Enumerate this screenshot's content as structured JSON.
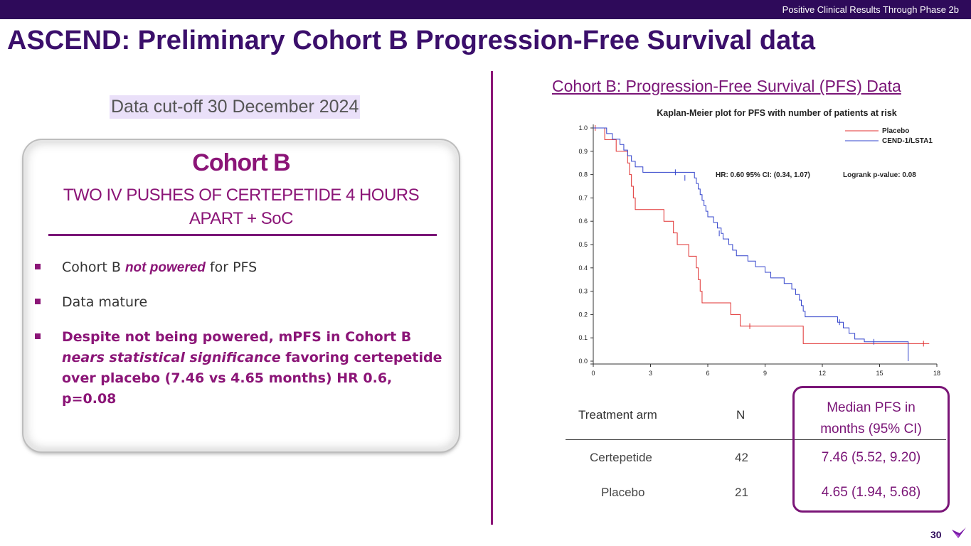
{
  "header": {
    "tagline": "Positive Clinical Results Through Phase 2b"
  },
  "slide": {
    "title": "ASCEND: Preliminary Cohort B Progression-Free Survival data",
    "cutoff": "Data cut-off 30 December 2024",
    "page_number": "30"
  },
  "card": {
    "title": "Cohort B",
    "subtitle_line1": "TWO IV PUSHES OF CERTEPETIDE 4 HOURS",
    "subtitle_line2": "APART + SoC",
    "bullet1_pre": "Cohort B ",
    "bullet1_em": "not powered",
    "bullet1_post": " for PFS",
    "bullet2": "Data mature",
    "bullet3_a": "Despite not being powered, mPFS in Cohort B ",
    "bullet3_b": "nears statistical significance",
    "bullet3_c": " favoring certepetide over placebo (7.46 vs 4.65 months) HR 0.6, p=0.08"
  },
  "chart_heading": "Cohort B: Progression-Free Survival (PFS) Data",
  "colors": {
    "placebo": "#e03030",
    "treatment": "#3344cc",
    "accent": "#8b1577",
    "brand_dark": "#2e0a5a"
  },
  "chart_data": {
    "type": "line",
    "title": "Kaplan-Meier plot for PFS with number of patients at risk",
    "x_ticks": [
      0,
      3,
      6,
      9,
      12,
      15,
      18
    ],
    "y_ticks": [
      "0.0",
      "0.1",
      "0.2",
      "0.3",
      "0.4",
      "0.5",
      "0.6",
      "0.7",
      "0.8",
      "0.9",
      "1.0"
    ],
    "xlim": [
      0,
      18
    ],
    "ylim": [
      0,
      1
    ],
    "annotation_hr": "HR: 0.60  95% CI: (0.34, 1.07)",
    "annotation_logrank": "Logrank p-value:  0.08",
    "legend_position": "top-right",
    "series": [
      {
        "name": "Placebo",
        "color_key": "placebo",
        "step_points": [
          [
            0,
            1.0
          ],
          [
            0.6,
            0.95
          ],
          [
            1.2,
            0.9
          ],
          [
            1.8,
            0.85
          ],
          [
            1.9,
            0.8
          ],
          [
            2.0,
            0.75
          ],
          [
            2.1,
            0.7
          ],
          [
            2.2,
            0.65
          ],
          [
            3.7,
            0.6
          ],
          [
            4.2,
            0.55
          ],
          [
            4.4,
            0.5
          ],
          [
            5.0,
            0.45
          ],
          [
            5.4,
            0.4
          ],
          [
            5.5,
            0.35
          ],
          [
            5.6,
            0.3
          ],
          [
            5.7,
            0.25
          ],
          [
            7.2,
            0.2
          ],
          [
            7.7,
            0.15
          ],
          [
            11.0,
            0.075
          ],
          [
            17.6,
            0.075
          ]
        ],
        "censor_points": [
          [
            0.1,
            1.0
          ],
          [
            8.2,
            0.15
          ],
          [
            17.3,
            0.075
          ]
        ]
      },
      {
        "name": "CEND-1/LSTA1",
        "color_key": "treatment",
        "step_points": [
          [
            0,
            1.0
          ],
          [
            0.7,
            0.976
          ],
          [
            1.0,
            0.952
          ],
          [
            1.4,
            0.929
          ],
          [
            1.6,
            0.905
          ],
          [
            1.8,
            0.881
          ],
          [
            2.0,
            0.857
          ],
          [
            2.2,
            0.833
          ],
          [
            2.6,
            0.81
          ],
          [
            5.3,
            0.786
          ],
          [
            5.4,
            0.762
          ],
          [
            5.5,
            0.738
          ],
          [
            5.6,
            0.714
          ],
          [
            5.7,
            0.69
          ],
          [
            5.8,
            0.667
          ],
          [
            5.9,
            0.643
          ],
          [
            6.0,
            0.619
          ],
          [
            6.3,
            0.595
          ],
          [
            6.5,
            0.571
          ],
          [
            6.7,
            0.548
          ],
          [
            6.8,
            0.524
          ],
          [
            7.1,
            0.5
          ],
          [
            7.3,
            0.476
          ],
          [
            7.5,
            0.452
          ],
          [
            8.1,
            0.429
          ],
          [
            8.5,
            0.405
          ],
          [
            9.0,
            0.381
          ],
          [
            9.3,
            0.357
          ],
          [
            10.0,
            0.333
          ],
          [
            10.4,
            0.309
          ],
          [
            10.6,
            0.286
          ],
          [
            10.8,
            0.262
          ],
          [
            10.9,
            0.238
          ],
          [
            11.0,
            0.214
          ],
          [
            11.1,
            0.19
          ],
          [
            12.8,
            0.167
          ],
          [
            13.1,
            0.143
          ],
          [
            13.4,
            0.119
          ],
          [
            13.7,
            0.095
          ],
          [
            14.2,
            0.083
          ],
          [
            16.5,
            0.0
          ]
        ],
        "censor_points": [
          [
            4.3,
            0.81
          ],
          [
            4.8,
            0.786
          ],
          [
            6.6,
            0.548
          ],
          [
            12.9,
            0.167
          ],
          [
            14.7,
            0.083
          ]
        ]
      }
    ]
  },
  "table": {
    "header_arm": "Treatment arm",
    "header_n": "N",
    "header_median_line1": "Median PFS in",
    "header_median_line2": "months (95% CI)",
    "rows": [
      {
        "arm": "Certepetide",
        "n": "42",
        "median": "7.46 (5.52, 9.20)"
      },
      {
        "arm": "Placebo",
        "n": "21",
        "median": "4.65 (1.94, 5.68)"
      }
    ]
  }
}
